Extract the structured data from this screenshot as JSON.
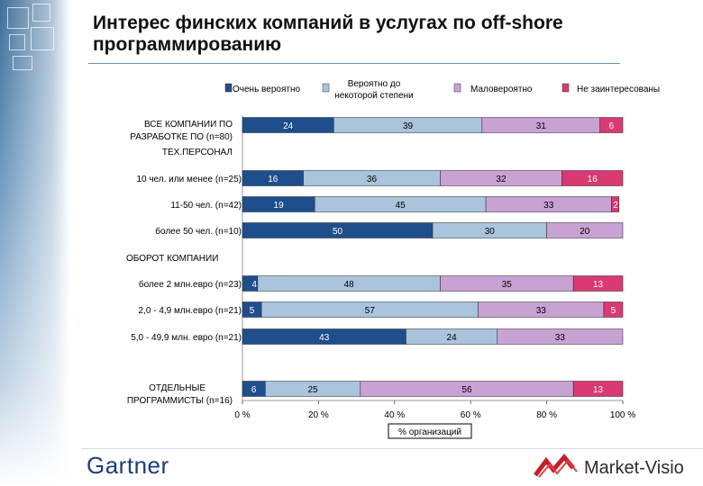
{
  "title": "Интерес финских компаний в услугах по off-shore программированию",
  "footer": {
    "left_logo": "Gartner",
    "right_logo": "Market-Visio"
  },
  "chart_data": {
    "type": "bar",
    "orientation": "horizontal",
    "stacked": true,
    "normalized": true,
    "xlabel": "% организаций",
    "xlim": [
      0,
      100
    ],
    "xticks": [
      "0 %",
      "20 %",
      "40 %",
      "60 %",
      "80 %",
      "100 %"
    ],
    "xtick_values": [
      0,
      20,
      40,
      60,
      80,
      100
    ],
    "legend": [
      {
        "name": "Очень вероятно",
        "color": "#1f4e8c"
      },
      {
        "name": "Вероятно до некоторой степени",
        "color": "#a9c4dc"
      },
      {
        "name": "Маловероятно",
        "color": "#c9a2d4"
      },
      {
        "name": "Не заинтересованы",
        "color": "#d93a73"
      }
    ],
    "section_headers": [
      {
        "label": "ОБОРОТ КОМПАНИИ",
        "before_row": 4
      }
    ],
    "rows": [
      {
        "label": "ВСЕ КОМПАНИИ ПО РАЗРАБОТКЕ ПО (n=80) ТЕХ.ПЕРСОНАЛ",
        "values": [
          24,
          39,
          31,
          6
        ]
      },
      {
        "label": "10 чел. или менее (n=25)",
        "values": [
          16,
          36,
          32,
          16
        ]
      },
      {
        "label": "11-50 чел. (n=42)",
        "values": [
          19,
          45,
          33,
          2
        ]
      },
      {
        "label": "более 50 чел. (n=10)",
        "values": [
          50,
          30,
          20,
          0
        ]
      },
      {
        "label": "более 2 млн.евро (n=23)",
        "values": [
          4,
          48,
          35,
          13
        ]
      },
      {
        "label": "2,0 - 4,9 млн.евро (n=21)",
        "values": [
          5,
          57,
          33,
          5
        ]
      },
      {
        "label": "5,0 - 49,9 млн. евро (n=21)",
        "values": [
          43,
          24,
          33,
          0
        ]
      },
      {
        "label": "ОТДЕЛЬНЫЕ ПРОГРАММИСТЫ (n=16)",
        "values": [
          6,
          25,
          56,
          13
        ]
      }
    ]
  }
}
